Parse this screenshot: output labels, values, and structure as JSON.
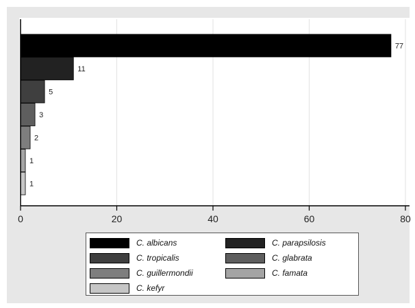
{
  "chart_data": {
    "type": "bar",
    "orientation": "horizontal",
    "categories": [
      "C. albicans",
      "C. parapsilosis",
      "C. tropicalis",
      "C. glabrata",
      "C. guillermondii",
      "C. famata",
      "C. kefyr"
    ],
    "values": [
      77,
      11,
      5,
      3,
      2,
      1,
      1
    ],
    "data_labels": [
      "77",
      "11",
      "5",
      "3",
      "2",
      "1",
      "1"
    ],
    "colors": [
      "#000000",
      "#222222",
      "#3f3f3f",
      "#5e5e5e",
      "#7e7e7e",
      "#a4a4a4",
      "#c6c6c6"
    ],
    "xlim": [
      0,
      80
    ],
    "xticks": [
      0,
      20,
      40,
      60,
      80
    ],
    "xtick_labels": [
      "0",
      "20",
      "40",
      "60",
      "80"
    ],
    "grid": true,
    "legend_position": "bottom"
  },
  "legend": {
    "items": [
      {
        "label": "C. albicans",
        "color": "#000000"
      },
      {
        "label": "C. parapsilosis",
        "color": "#222222"
      },
      {
        "label": "C. tropicalis",
        "color": "#3f3f3f"
      },
      {
        "label": "C. glabrata",
        "color": "#5e5e5e"
      },
      {
        "label": "C. guillermondii",
        "color": "#7e7e7e"
      },
      {
        "label": "C. famata",
        "color": "#a4a4a4"
      },
      {
        "label": "C. kefyr",
        "color": "#c6c6c6"
      }
    ]
  }
}
